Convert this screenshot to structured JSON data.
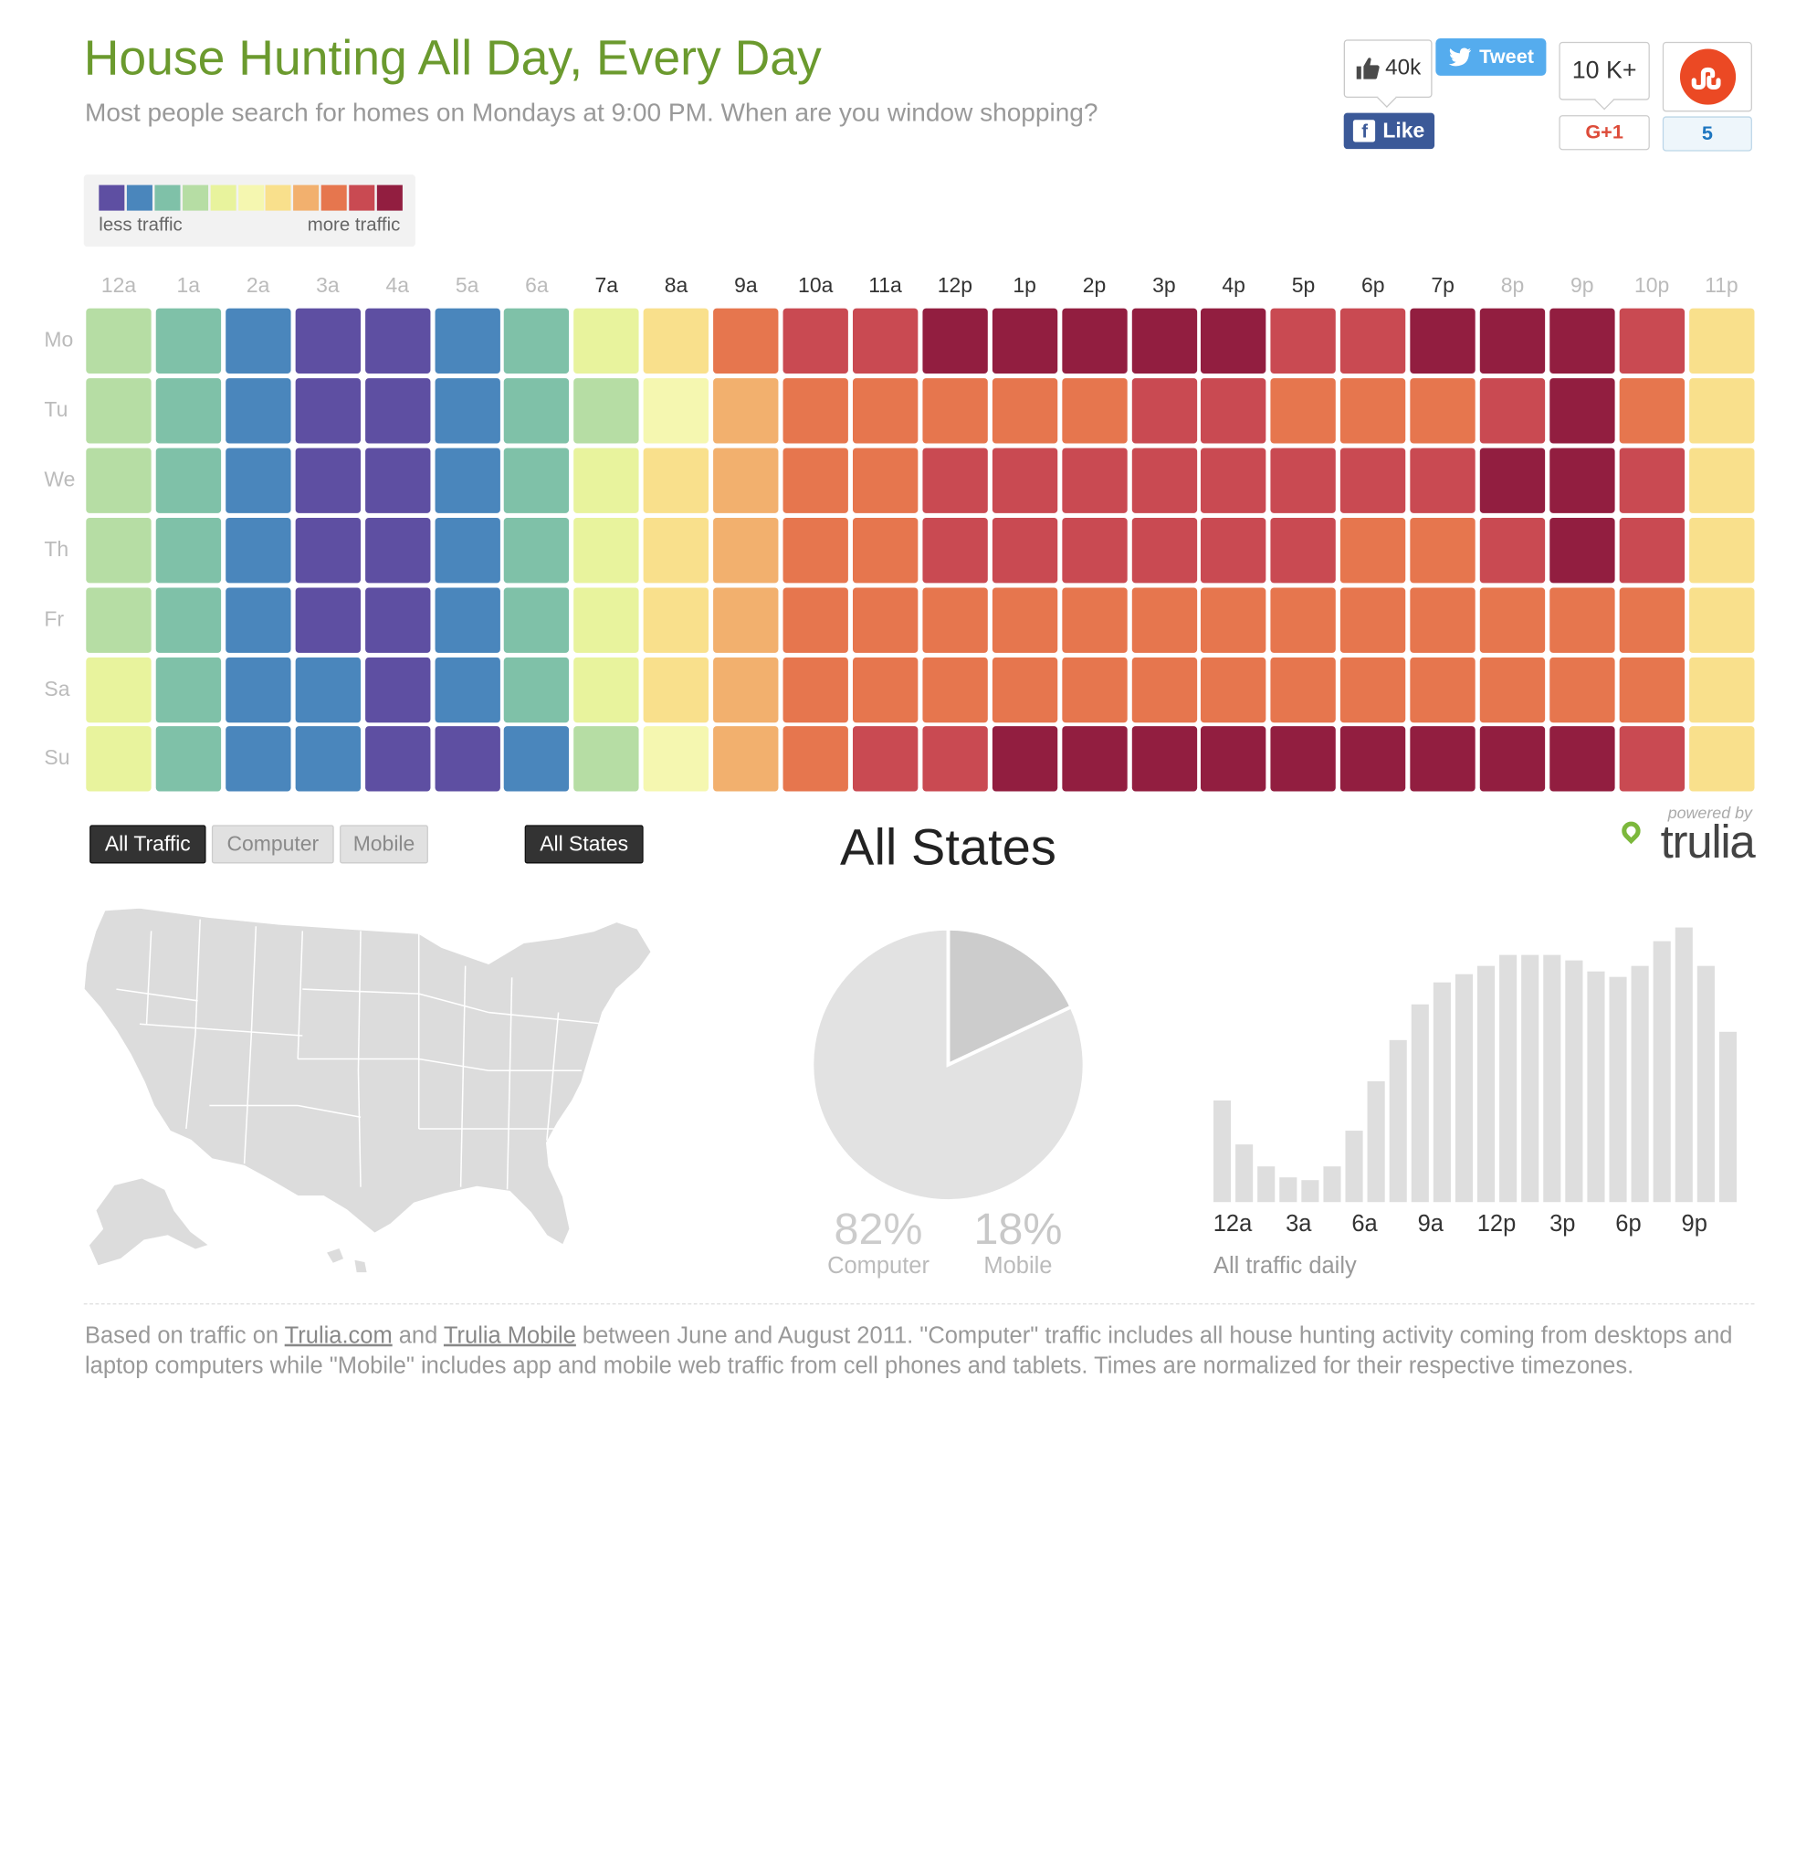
{
  "header": {
    "title": "House Hunting All Day, Every Day",
    "subtitle": "Most people search for homes on Mondays at 9:00 PM. When are you window shopping?"
  },
  "social": {
    "facebook_count": "40k",
    "facebook_label": "Like",
    "facebook_glyph": "f",
    "tweet_label": "Tweet",
    "gplus_count": "10 K+",
    "gplus_label": "G+1",
    "stumble_count": "5"
  },
  "legend": {
    "less": "less traffic",
    "more": "more traffic",
    "colors": [
      "#5e4fa2",
      "#4a86bc",
      "#7fc1a8",
      "#b6dda4",
      "#e8f39d",
      "#f5f7b0",
      "#f9e08c",
      "#f2b06e",
      "#e6764e",
      "#c94a52",
      "#921e40"
    ]
  },
  "heatmap": {
    "hours": [
      "12a",
      "1a",
      "2a",
      "3a",
      "4a",
      "5a",
      "6a",
      "7a",
      "8a",
      "9a",
      "10a",
      "11a",
      "12p",
      "1p",
      "2p",
      "3p",
      "4p",
      "5p",
      "6p",
      "7p",
      "8p",
      "9p",
      "10p",
      "11p"
    ],
    "hour_emphasis": [
      false,
      false,
      false,
      false,
      false,
      false,
      false,
      true,
      true,
      true,
      true,
      true,
      true,
      true,
      true,
      true,
      true,
      true,
      true,
      true,
      false,
      false,
      false,
      false
    ],
    "days": [
      "Mo",
      "Tu",
      "We",
      "Th",
      "Fr",
      "Sa",
      "Su"
    ],
    "levels": [
      [
        3,
        2,
        1,
        0,
        0,
        1,
        2,
        4,
        6,
        8,
        9,
        9,
        10,
        10,
        10,
        10,
        10,
        9,
        9,
        10,
        10,
        10,
        9,
        6
      ],
      [
        3,
        2,
        1,
        0,
        0,
        1,
        2,
        3,
        5,
        7,
        8,
        8,
        8,
        8,
        8,
        9,
        9,
        8,
        8,
        8,
        9,
        10,
        8,
        6
      ],
      [
        3,
        2,
        1,
        0,
        0,
        1,
        2,
        4,
        6,
        7,
        8,
        8,
        9,
        9,
        9,
        9,
        9,
        9,
        9,
        9,
        10,
        10,
        9,
        6
      ],
      [
        3,
        2,
        1,
        0,
        0,
        1,
        2,
        4,
        6,
        7,
        8,
        8,
        9,
        9,
        9,
        9,
        9,
        9,
        8,
        8,
        9,
        10,
        9,
        6
      ],
      [
        3,
        2,
        1,
        0,
        0,
        1,
        2,
        4,
        6,
        7,
        8,
        8,
        8,
        8,
        8,
        8,
        8,
        8,
        8,
        8,
        8,
        8,
        8,
        6
      ],
      [
        4,
        2,
        1,
        1,
        0,
        1,
        2,
        4,
        6,
        7,
        8,
        8,
        8,
        8,
        8,
        8,
        8,
        8,
        8,
        8,
        8,
        8,
        8,
        6
      ],
      [
        4,
        2,
        1,
        1,
        0,
        0,
        1,
        3,
        5,
        7,
        8,
        9,
        9,
        10,
        10,
        10,
        10,
        10,
        10,
        10,
        10,
        10,
        9,
        6
      ]
    ]
  },
  "controls": {
    "traffic_all": "All Traffic",
    "traffic_computer": "Computer",
    "traffic_mobile": "Mobile",
    "states": "All States"
  },
  "selection": {
    "state_title": "All States"
  },
  "branding": {
    "powered_by": "powered by",
    "logo": "trulia"
  },
  "chart_data": [
    {
      "type": "pie",
      "labels": [
        "Computer",
        "Mobile"
      ],
      "values": [
        82,
        18
      ],
      "display": [
        "82%",
        "18%"
      ],
      "colors": [
        "#e2e2e2",
        "#cccccc"
      ]
    },
    {
      "type": "bar",
      "title": "All traffic daily",
      "categories": [
        "12a",
        "1a",
        "2a",
        "3a",
        "4a",
        "5a",
        "6a",
        "7a",
        "8a",
        "9a",
        "10a",
        "11a",
        "12p",
        "1p",
        "2p",
        "3p",
        "4p",
        "5p",
        "6p",
        "7p",
        "8p",
        "9p",
        "10p",
        "11p"
      ],
      "tick_labels": [
        "12a",
        "3a",
        "6a",
        "9a",
        "12p",
        "3p",
        "6p",
        "9p"
      ],
      "values": [
        37,
        21,
        13,
        9,
        8,
        13,
        26,
        44,
        59,
        72,
        80,
        83,
        86,
        90,
        90,
        90,
        88,
        84,
        82,
        86,
        95,
        100,
        86,
        62
      ]
    }
  ],
  "footnote": {
    "prefix": "Based on traffic on ",
    "link1": "Trulia.com",
    "mid1": " and ",
    "link2": "Trulia Mobile",
    "rest": " between June and August 2011. \"Computer\" traffic includes all house hunting activity coming from desktops and laptop computers while \"Mobile\" includes app and mobile web traffic from cell phones and tablets. Times are normalized for their respective timezones."
  }
}
